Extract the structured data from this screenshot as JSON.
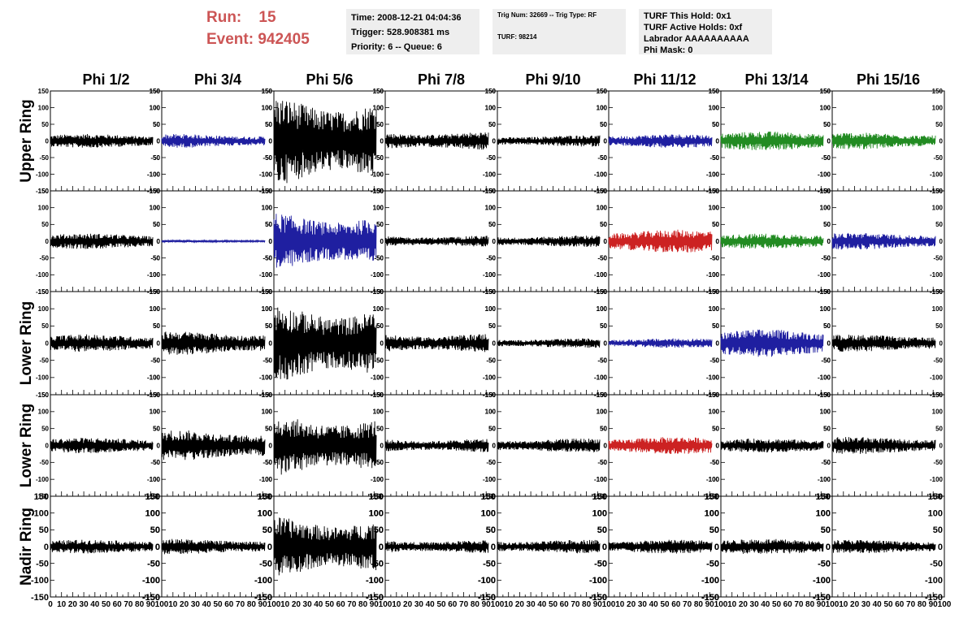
{
  "run": {
    "label": "Run:",
    "value": "15"
  },
  "event": {
    "label": "Event:",
    "value": "942405"
  },
  "time_box": {
    "time": "Time: 2008-12-21 04:04:36",
    "trigger": "Trigger: 528.908381 ms",
    "priority": "Priority: 6 -- Queue: 6"
  },
  "trig_box": {
    "line1": "Trig Num: 32669 -- Trig Type: RF",
    "line2": "TURF: 98214"
  },
  "turf_box": {
    "hold": "TURF This Hold: 0x1",
    "active": "TURF Active Holds: 0xf",
    "labrador": "Labrador AAAAAAAAAA",
    "phimask": "Phi Mask: 0"
  },
  "colors": {
    "black": "#000000",
    "blue": "#1f1fa0",
    "red": "#cc2222",
    "green": "#228b22"
  },
  "chart_data": {
    "type": "line",
    "columns": [
      "Phi 1/2",
      "Phi 3/4",
      "Phi 5/6",
      "Phi 7/8",
      "Phi 9/10",
      "Phi 11/12",
      "Phi 13/14",
      "Phi 15/16"
    ],
    "rows": [
      {
        "label": "Upper Ring",
        "size": "small"
      },
      {
        "label": "",
        "size": "small"
      },
      {
        "label": "Lower Ring",
        "size": "small"
      },
      {
        "label": "Lower Ring",
        "size": "small"
      },
      {
        "label": "Nadir Ring",
        "size": "large"
      }
    ],
    "ylim": [
      -150,
      150
    ],
    "yticks": [
      -150,
      -100,
      -50,
      0,
      50,
      100,
      150
    ],
    "xlim": [
      0,
      100
    ],
    "xticks": [
      0,
      10,
      20,
      30,
      40,
      50,
      60,
      70,
      80,
      90,
      100
    ],
    "trace_x_end": 92,
    "amplitudes": [
      [
        18,
        18,
        120,
        25,
        15,
        18,
        25,
        22
      ],
      [
        20,
        3,
        75,
        15,
        15,
        30,
        20,
        22
      ],
      [
        22,
        30,
        100,
        25,
        12,
        12,
        35,
        22
      ],
      [
        20,
        40,
        80,
        18,
        18,
        22,
        18,
        22
      ],
      [
        18,
        20,
        80,
        18,
        18,
        18,
        20,
        18
      ]
    ],
    "trace_colors": [
      [
        "black",
        "blue",
        "black",
        "black",
        "black",
        "blue",
        "green",
        "green"
      ],
      [
        "black",
        "blue",
        "blue",
        "black",
        "black",
        "red",
        "green",
        "blue"
      ],
      [
        "black",
        "black",
        "black",
        "black",
        "black",
        "blue",
        "blue",
        "black"
      ],
      [
        "black",
        "black",
        "black",
        "black",
        "black",
        "red",
        "black",
        "black"
      ],
      [
        "black",
        "black",
        "black",
        "black",
        "black",
        "black",
        "black",
        "black"
      ]
    ]
  }
}
